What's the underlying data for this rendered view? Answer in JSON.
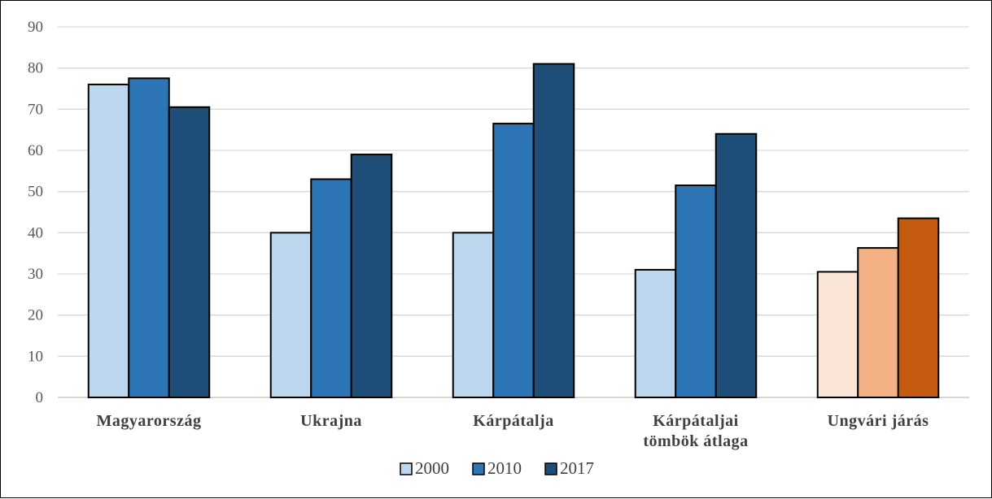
{
  "chart_data": {
    "type": "bar",
    "categories": [
      [
        "Magyarország"
      ],
      [
        "Ukrajna"
      ],
      [
        "Kárpátalja"
      ],
      [
        "Kárpátaljai",
        "tömbök átlaga"
      ],
      [
        "Ungvári járás"
      ]
    ],
    "series": [
      {
        "name": "2000",
        "values": [
          76,
          40,
          40,
          31,
          30.5
        ]
      },
      {
        "name": "2010",
        "values": [
          77.5,
          53,
          66.5,
          51.5,
          36.3
        ]
      },
      {
        "name": "2017",
        "values": [
          70.5,
          59,
          81,
          64,
          43.5
        ]
      }
    ],
    "ylim": [
      0,
      90
    ],
    "yticks": [
      0,
      10,
      20,
      30,
      40,
      50,
      60,
      70,
      80,
      90
    ],
    "grid": true,
    "legend_position": "bottom",
    "colors": {
      "series": [
        "#bdd7ee",
        "#2e75b6",
        "#1f4e79"
      ],
      "highlight_category_index": 4,
      "highlight_series": [
        "#fbe5d6",
        "#f4b183",
        "#c55a11"
      ],
      "gridline": "#d9d9d9",
      "bar_outline": "#000000"
    }
  }
}
